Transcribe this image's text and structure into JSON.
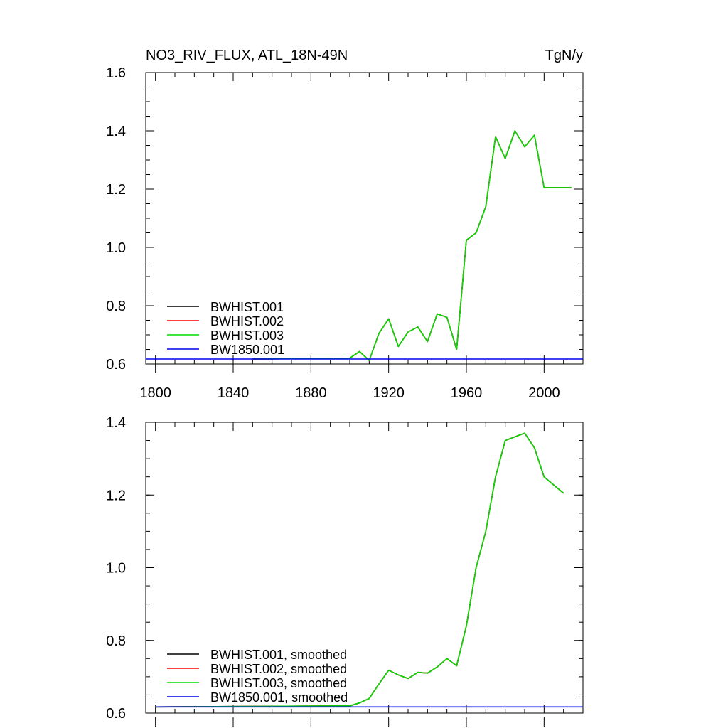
{
  "chart_data": [
    {
      "type": "line",
      "title": "NO3_RIV_FLUX, ATL_18N-49N",
      "units": "TgN/y",
      "xlabel": "",
      "ylabel": "",
      "xlim": [
        1795,
        2020
      ],
      "ylim": [
        0.6,
        1.6
      ],
      "x_ticks": [
        "1800",
        "1840",
        "1880",
        "1920",
        "1960",
        "2000"
      ],
      "y_ticks": [
        "0.6",
        "0.8",
        "1.0",
        "1.2",
        "1.4",
        "1.6"
      ],
      "legend_position": "bottom-left",
      "series": [
        {
          "name": "BWHIST.001",
          "color": "#000000",
          "x": [
            1850,
            1900,
            1905,
            1910,
            1915,
            1920,
            1925,
            1930,
            1935,
            1940,
            1945,
            1950,
            1955,
            1960,
            1965,
            1970,
            1975,
            1980,
            1985,
            1990,
            1995,
            2000,
            2014
          ],
          "y": [
            0.617,
            0.62,
            0.643,
            0.612,
            0.705,
            0.755,
            0.66,
            0.71,
            0.727,
            0.677,
            0.772,
            0.76,
            0.65,
            1.025,
            1.05,
            1.14,
            1.38,
            1.305,
            1.4,
            1.345,
            1.385,
            1.205,
            1.205
          ]
        },
        {
          "name": "BWHIST.002",
          "color": "#ff0000",
          "x": [
            1850,
            1900,
            1905,
            1910,
            1915,
            1920,
            1925,
            1930,
            1935,
            1940,
            1945,
            1950,
            1955,
            1960,
            1965,
            1970,
            1975,
            1980,
            1985,
            1990,
            1995,
            2000,
            2014
          ],
          "y": [
            0.617,
            0.62,
            0.643,
            0.612,
            0.705,
            0.755,
            0.66,
            0.71,
            0.727,
            0.677,
            0.772,
            0.76,
            0.65,
            1.025,
            1.05,
            1.14,
            1.38,
            1.305,
            1.4,
            1.345,
            1.385,
            1.205,
            1.205
          ]
        },
        {
          "name": "BWHIST.003",
          "color": "#00dd00",
          "x": [
            1850,
            1900,
            1905,
            1910,
            1915,
            1920,
            1925,
            1930,
            1935,
            1940,
            1945,
            1950,
            1955,
            1960,
            1965,
            1970,
            1975,
            1980,
            1985,
            1990,
            1995,
            2000,
            2014
          ],
          "y": [
            0.617,
            0.62,
            0.643,
            0.612,
            0.705,
            0.755,
            0.66,
            0.71,
            0.727,
            0.677,
            0.772,
            0.76,
            0.65,
            1.025,
            1.05,
            1.14,
            1.38,
            1.305,
            1.4,
            1.345,
            1.385,
            1.205,
            1.205
          ]
        },
        {
          "name": "BW1850.001",
          "color": "#0000ee",
          "x": [
            1795,
            2020
          ],
          "y": [
            0.617,
            0.617
          ]
        }
      ]
    },
    {
      "type": "line",
      "title": "",
      "xlabel": "",
      "ylabel": "",
      "xlim": [
        1795,
        2020
      ],
      "ylim": [
        0.6,
        1.4
      ],
      "x_ticks": [],
      "y_ticks": [
        "0.6",
        "0.8",
        "1.0",
        "1.2",
        "1.4"
      ],
      "legend_position": "bottom-left",
      "series": [
        {
          "name": "BWHIST.001, smoothed",
          "color": "#000000",
          "x": [
            1800,
            1900,
            1905,
            1910,
            1915,
            1920,
            1925,
            1930,
            1935,
            1940,
            1945,
            1950,
            1955,
            1960,
            1965,
            1970,
            1975,
            1980,
            1985,
            1990,
            1995,
            2000,
            2010
          ],
          "y": [
            0.617,
            0.62,
            0.628,
            0.64,
            0.68,
            0.718,
            0.705,
            0.695,
            0.712,
            0.71,
            0.727,
            0.75,
            0.73,
            0.84,
            1.0,
            1.1,
            1.25,
            1.35,
            1.36,
            1.37,
            1.33,
            1.25,
            1.205
          ]
        },
        {
          "name": "BWHIST.002, smoothed",
          "color": "#ff0000",
          "x": [
            1800,
            1900,
            1905,
            1910,
            1915,
            1920,
            1925,
            1930,
            1935,
            1940,
            1945,
            1950,
            1955,
            1960,
            1965,
            1970,
            1975,
            1980,
            1985,
            1990,
            1995,
            2000,
            2010
          ],
          "y": [
            0.617,
            0.62,
            0.628,
            0.64,
            0.68,
            0.718,
            0.705,
            0.695,
            0.712,
            0.71,
            0.727,
            0.75,
            0.73,
            0.84,
            1.0,
            1.1,
            1.25,
            1.35,
            1.36,
            1.37,
            1.33,
            1.25,
            1.205
          ]
        },
        {
          "name": "BWHIST.003, smoothed",
          "color": "#00dd00",
          "x": [
            1800,
            1900,
            1905,
            1910,
            1915,
            1920,
            1925,
            1930,
            1935,
            1940,
            1945,
            1950,
            1955,
            1960,
            1965,
            1970,
            1975,
            1980,
            1985,
            1990,
            1995,
            2000,
            2010
          ],
          "y": [
            0.617,
            0.62,
            0.628,
            0.64,
            0.68,
            0.718,
            0.705,
            0.695,
            0.712,
            0.71,
            0.727,
            0.75,
            0.73,
            0.84,
            1.0,
            1.1,
            1.25,
            1.35,
            1.36,
            1.37,
            1.33,
            1.25,
            1.205
          ]
        },
        {
          "name": "BW1850.001, smoothed",
          "color": "#0000ee",
          "x": [
            1800,
            2025
          ],
          "y": [
            0.617,
            0.617
          ]
        }
      ]
    }
  ]
}
